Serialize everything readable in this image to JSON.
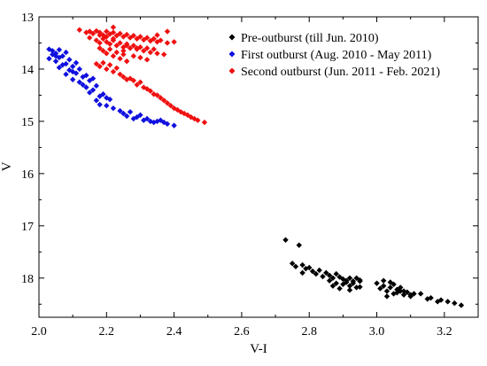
{
  "chart_data": {
    "type": "scatter",
    "title": "",
    "xlabel": "V-I",
    "ylabel": "V",
    "xlim": [
      2.0,
      3.3
    ],
    "ylim": [
      18.75,
      13.0
    ],
    "y_inverted": true,
    "xticks": [
      2.0,
      2.2,
      2.4,
      2.6,
      2.8,
      3.0,
      3.2
    ],
    "yticks": [
      13,
      14,
      15,
      16,
      17,
      18
    ],
    "grid": false,
    "legend_position": "top-right",
    "marker": "diamond",
    "series": [
      {
        "name": "Pre-outburst (till Jun. 2010)",
        "color": "#000000",
        "x": [
          2.73,
          2.77,
          2.75,
          2.76,
          2.78,
          2.79,
          2.8,
          2.81,
          2.82,
          2.78,
          2.83,
          2.84,
          2.85,
          2.86,
          2.87,
          2.88,
          2.89,
          2.9,
          2.91,
          2.92,
          2.93,
          2.94,
          2.95,
          2.86,
          2.88,
          2.9,
          2.91,
          2.92,
          2.93,
          2.94,
          2.95,
          2.89,
          2.92,
          2.87,
          2.95,
          3.0,
          3.01,
          3.02,
          3.03,
          3.04,
          3.05,
          3.06,
          3.07,
          3.08,
          3.09,
          3.1,
          3.11,
          3.02,
          3.04,
          3.05,
          3.07,
          3.08,
          3.1,
          3.13,
          3.15,
          3.16,
          3.18,
          3.19,
          3.21,
          3.23,
          3.25,
          3.03,
          3.06
        ],
        "y": [
          17.27,
          17.37,
          17.72,
          17.78,
          17.75,
          17.82,
          17.8,
          17.87,
          17.92,
          17.9,
          17.85,
          17.97,
          17.9,
          17.95,
          18.0,
          17.92,
          17.98,
          18.02,
          18.05,
          18.0,
          18.06,
          18.0,
          18.04,
          18.05,
          18.1,
          18.12,
          18.08,
          18.15,
          18.1,
          18.18,
          18.06,
          18.2,
          18.23,
          18.15,
          18.17,
          18.1,
          18.2,
          18.15,
          18.25,
          18.18,
          18.3,
          18.22,
          18.25,
          18.32,
          18.27,
          18.35,
          18.3,
          18.05,
          18.08,
          18.12,
          18.18,
          18.25,
          18.32,
          18.3,
          18.4,
          18.38,
          18.45,
          18.42,
          18.45,
          18.48,
          18.52,
          18.35,
          18.28
        ]
      },
      {
        "name": "First outburst (Aug. 2010 - May 2011)",
        "color": "#1010e0",
        "x": [
          2.03,
          2.04,
          2.05,
          2.06,
          2.07,
          2.08,
          2.03,
          2.05,
          2.06,
          2.08,
          2.09,
          2.1,
          2.11,
          2.04,
          2.06,
          2.07,
          2.09,
          2.1,
          2.12,
          2.05,
          2.08,
          2.11,
          2.13,
          2.14,
          2.1,
          2.12,
          2.15,
          2.16,
          2.13,
          2.14,
          2.16,
          2.17,
          2.15,
          2.18,
          2.19,
          2.2,
          2.17,
          2.21,
          2.18,
          2.2,
          2.22,
          2.24,
          2.25,
          2.26,
          2.27,
          2.28,
          2.29,
          2.3,
          2.31,
          2.32,
          2.33,
          2.34,
          2.35,
          2.36,
          2.37,
          2.38,
          2.4
        ],
        "y": [
          13.62,
          13.65,
          13.7,
          13.63,
          13.75,
          13.68,
          13.8,
          13.85,
          13.78,
          13.9,
          13.82,
          13.95,
          13.88,
          13.72,
          13.97,
          13.92,
          14.02,
          14.05,
          14.0,
          13.75,
          14.1,
          14.08,
          14.15,
          14.12,
          14.2,
          14.25,
          14.22,
          14.18,
          14.3,
          14.35,
          14.4,
          14.32,
          14.45,
          14.52,
          14.48,
          14.55,
          14.6,
          14.58,
          14.68,
          14.7,
          14.75,
          14.8,
          14.85,
          14.9,
          14.82,
          14.95,
          14.92,
          14.88,
          14.98,
          14.95,
          15.0,
          15.02,
          15.0,
          14.98,
          15.02,
          15.05,
          15.08
        ]
      },
      {
        "name": "Second outburst (Jun. 2011 - Feb. 2021)",
        "color": "#f01010",
        "x": [
          2.12,
          2.14,
          2.15,
          2.16,
          2.17,
          2.18,
          2.19,
          2.2,
          2.21,
          2.22,
          2.23,
          2.24,
          2.25,
          2.26,
          2.27,
          2.28,
          2.29,
          2.3,
          2.31,
          2.32,
          2.33,
          2.34,
          2.35,
          2.36,
          2.38,
          2.4,
          2.15,
          2.17,
          2.18,
          2.19,
          2.2,
          2.21,
          2.22,
          2.23,
          2.24,
          2.25,
          2.26,
          2.27,
          2.28,
          2.29,
          2.3,
          2.31,
          2.32,
          2.33,
          2.34,
          2.35,
          2.37,
          2.18,
          2.19,
          2.2,
          2.21,
          2.22,
          2.23,
          2.24,
          2.25,
          2.26,
          2.28,
          2.3,
          2.32,
          2.17,
          2.18,
          2.19,
          2.2,
          2.21,
          2.22,
          2.23,
          2.24,
          2.25,
          2.26,
          2.27,
          2.28,
          2.29,
          2.3,
          2.31,
          2.32,
          2.33,
          2.34,
          2.35,
          2.36,
          2.37,
          2.38,
          2.39,
          2.4,
          2.41,
          2.42,
          2.43,
          2.44,
          2.45,
          2.46,
          2.47,
          2.49,
          2.18,
          2.2,
          2.22,
          2.26,
          2.29,
          2.25,
          2.35,
          2.38,
          2.22
        ],
        "y": [
          13.25,
          13.3,
          13.28,
          13.32,
          13.27,
          13.3,
          13.35,
          13.28,
          13.33,
          13.3,
          13.36,
          13.32,
          13.38,
          13.34,
          13.4,
          13.36,
          13.42,
          13.38,
          13.44,
          13.4,
          13.46,
          13.42,
          13.48,
          13.45,
          13.5,
          13.48,
          13.4,
          13.45,
          13.5,
          13.42,
          13.48,
          13.52,
          13.45,
          13.55,
          13.5,
          13.58,
          13.52,
          13.6,
          13.55,
          13.62,
          13.58,
          13.65,
          13.6,
          13.68,
          13.62,
          13.7,
          13.72,
          13.6,
          13.65,
          13.7,
          13.62,
          13.75,
          13.68,
          13.8,
          13.72,
          13.85,
          13.75,
          13.78,
          13.82,
          13.9,
          13.95,
          13.88,
          14.0,
          13.92,
          14.05,
          13.98,
          14.1,
          14.15,
          14.2,
          14.18,
          14.22,
          14.3,
          14.25,
          14.35,
          14.38,
          14.42,
          14.48,
          14.5,
          14.55,
          14.6,
          14.65,
          14.7,
          14.75,
          14.78,
          14.82,
          14.85,
          14.88,
          14.92,
          14.95,
          14.98,
          15.02,
          13.35,
          13.38,
          13.42,
          13.55,
          13.6,
          13.65,
          13.35,
          13.28,
          13.2
        ]
      }
    ]
  }
}
